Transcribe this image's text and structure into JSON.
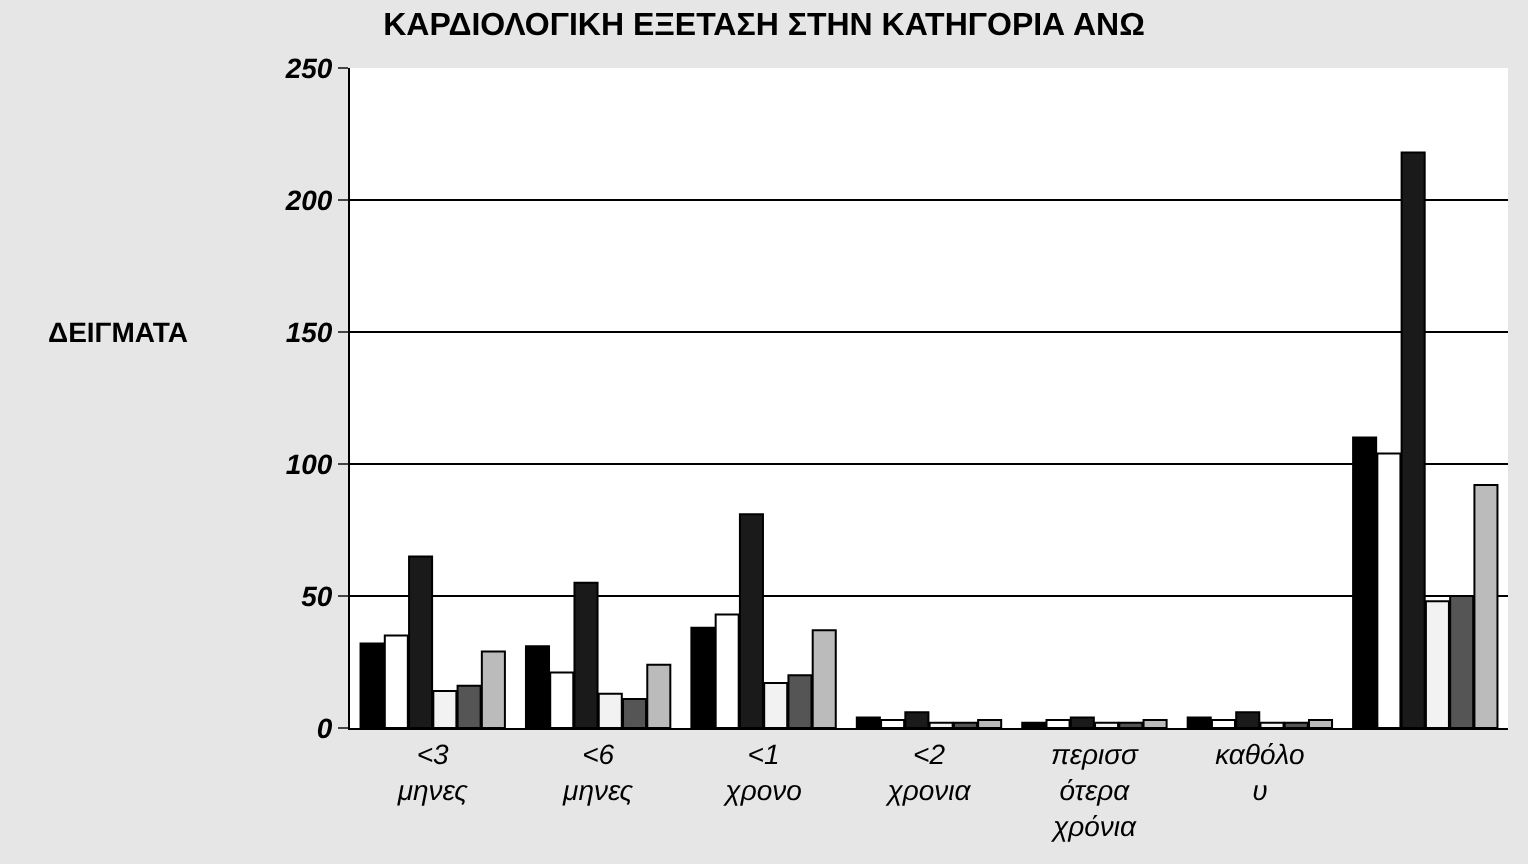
{
  "chart_data": {
    "type": "bar",
    "title": "ΚΑΡΔΙΟΛΟΓΙΚΗ ΕΞΕΤΑΣΗ ΣΤΗΝ ΚΑΤΗΓΟΡΙΑ ΑΝΩ",
    "ylabel": "ΔΕΙΓΜΑΤΑ",
    "categories": [
      "<3\nμηνες",
      "<6\nμηνες",
      "<1\nχρονο",
      "<2\nχρονια",
      "περισσ\nότερα\nχρόνια",
      "καθόλο\nυ",
      null
    ],
    "series": [
      {
        "color": "#000000",
        "values": [
          32,
          31,
          38,
          4,
          2,
          4,
          110
        ]
      },
      {
        "color": "#ffffff",
        "values": [
          35,
          21,
          43,
          3,
          3,
          3,
          104
        ]
      },
      {
        "color": "#1a1a1a",
        "values": [
          65,
          55,
          81,
          6,
          4,
          6,
          218
        ]
      },
      {
        "color": "#f2f2f2",
        "values": [
          14,
          13,
          17,
          2,
          2,
          2,
          48
        ]
      },
      {
        "color": "#555555",
        "values": [
          16,
          11,
          20,
          2,
          2,
          2,
          50
        ]
      },
      {
        "color": "#bbbbbb",
        "values": [
          29,
          24,
          37,
          3,
          3,
          3,
          92
        ]
      }
    ],
    "ylim": [
      0,
      250
    ],
    "yticks": [
      0,
      50,
      100,
      150,
      200,
      250
    ],
    "grid": "y",
    "legend": false
  }
}
